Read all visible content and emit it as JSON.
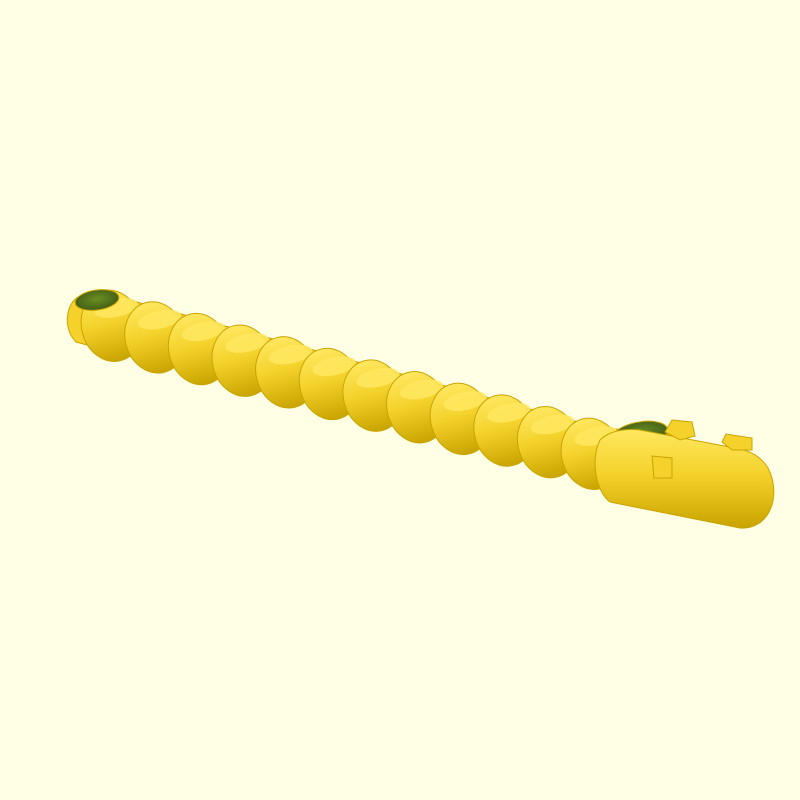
{
  "viewport": {
    "background_color": "#FFFFE5"
  },
  "model": {
    "kind": "segmented-tube",
    "segment_count": 12,
    "base_color": "#F4D22B",
    "highlight_color": "#FFE860",
    "shadow_color": "#C9A400",
    "dark_color": "#A88800",
    "interior_color": "#6B8E23",
    "interior_dark_color": "#3F5A14"
  }
}
